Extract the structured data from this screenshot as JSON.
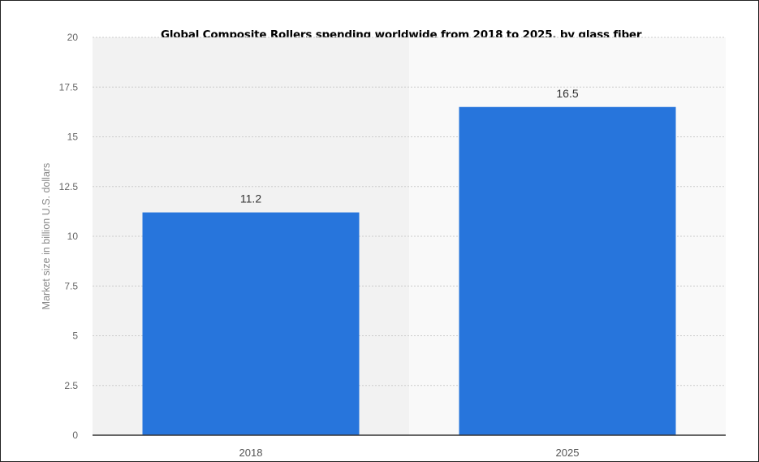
{
  "chart_data": {
    "type": "bar",
    "title": "Global Composite Rollers spending worldwide from 2018 to 2025, by glass fiber",
    "categories": [
      "2018",
      "2025"
    ],
    "values": [
      11.2,
      16.5
    ],
    "data_labels": [
      "11.2",
      "16.5"
    ],
    "xlabel": "",
    "ylabel": "Market size in billion U.S. dollars",
    "ylim": [
      0,
      20
    ],
    "yticks": [
      "0",
      "2.5",
      "5",
      "7.5",
      "10",
      "12.5",
      "15",
      "17.5",
      "20"
    ],
    "grid": true,
    "legend": "none",
    "colors": {
      "bar": "#2775dc",
      "grid": "#cccccc",
      "axis": "#333333",
      "band_light": "#f9f9f9",
      "band_dark": "#f2f2f2"
    }
  }
}
